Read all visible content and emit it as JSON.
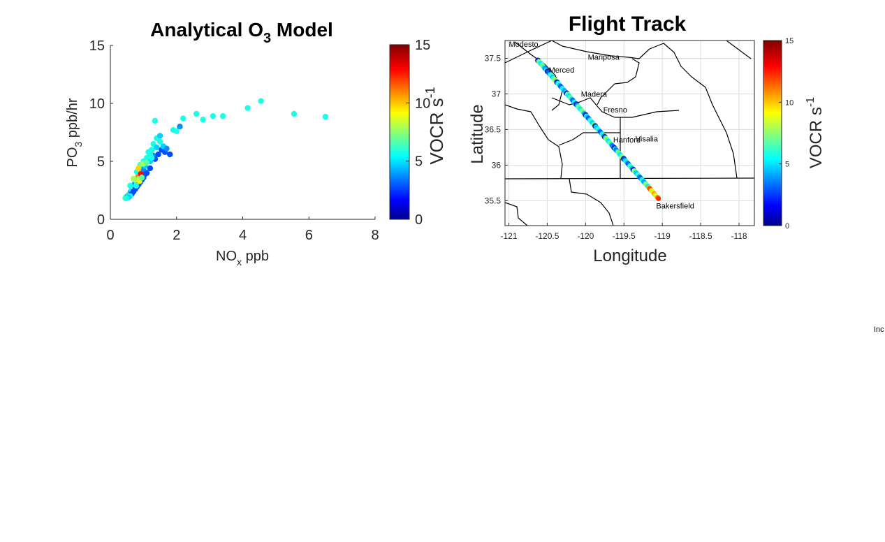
{
  "chart_data": [
    {
      "type": "scatter",
      "title": "Analytical O",
      "title_sub": "3",
      "title_suffix": " Model",
      "xlabel_main": "NO",
      "xlabel_sub": "x",
      "xlabel_suffix": " ppb",
      "ylabel_main": "PO",
      "ylabel_sub": "3",
      "ylabel_suffix": " ppb/hr",
      "xlim": [
        0,
        8
      ],
      "ylim": [
        0,
        15
      ],
      "xticks": [
        "0",
        "2",
        "4",
        "6",
        "8"
      ],
      "yticks": [
        "0",
        "5",
        "10",
        "15"
      ],
      "grid": false,
      "colormap": "jet",
      "colorbar": {
        "label_main": "VOCR s",
        "label_sup": "-1",
        "ticks": [
          "0",
          "5",
          "10",
          "15"
        ],
        "range": [
          0,
          15
        ]
      },
      "points": [
        [
          0.45,
          1.85,
          7
        ],
        [
          0.5,
          1.95,
          6
        ],
        [
          0.52,
          2.0,
          4
        ],
        [
          0.55,
          2.1,
          6
        ],
        [
          0.58,
          2.2,
          5
        ],
        [
          0.6,
          2.3,
          7
        ],
        [
          0.62,
          2.4,
          4
        ],
        [
          0.65,
          2.5,
          6
        ],
        [
          0.68,
          2.6,
          5
        ],
        [
          0.7,
          2.8,
          8
        ],
        [
          0.72,
          3.0,
          6
        ],
        [
          0.75,
          3.1,
          4
        ],
        [
          0.78,
          3.3,
          7
        ],
        [
          0.8,
          3.4,
          9
        ],
        [
          0.82,
          3.6,
          6
        ],
        [
          0.85,
          3.8,
          11
        ],
        [
          0.88,
          3.5,
          8
        ],
        [
          0.9,
          4.0,
          6
        ],
        [
          0.92,
          4.2,
          10
        ],
        [
          0.95,
          4.5,
          12
        ],
        [
          0.6,
          2.9,
          6
        ],
        [
          0.7,
          3.5,
          8
        ],
        [
          0.8,
          4.1,
          6
        ],
        [
          0.9,
          4.7,
          7
        ],
        [
          1.0,
          5.0,
          6
        ],
        [
          1.0,
          4.3,
          4
        ],
        [
          1.05,
          4.6,
          5
        ],
        [
          1.1,
          5.3,
          6
        ],
        [
          1.1,
          4.0,
          3
        ],
        [
          1.15,
          5.8,
          6
        ],
        [
          1.2,
          5.0,
          5
        ],
        [
          1.2,
          4.4,
          3
        ],
        [
          1.25,
          6.0,
          6
        ],
        [
          1.3,
          5.5,
          4
        ],
        [
          1.3,
          6.5,
          6
        ],
        [
          1.35,
          5.2,
          3
        ],
        [
          1.4,
          6.2,
          5
        ],
        [
          1.4,
          7.0,
          6
        ],
        [
          1.45,
          5.6,
          3
        ],
        [
          1.5,
          6.7,
          6
        ],
        [
          1.5,
          7.2,
          5
        ],
        [
          1.55,
          6.0,
          3
        ],
        [
          1.6,
          6.3,
          5
        ],
        [
          1.65,
          5.8,
          3
        ],
        [
          1.7,
          6.1,
          4
        ],
        [
          1.8,
          5.6,
          3
        ],
        [
          0.65,
          2.2,
          3
        ],
        [
          0.7,
          2.4,
          3
        ],
        [
          0.75,
          2.6,
          3
        ],
        [
          0.8,
          2.8,
          3
        ],
        [
          0.85,
          3.0,
          3
        ],
        [
          0.9,
          3.2,
          3
        ],
        [
          0.95,
          3.4,
          3
        ],
        [
          1.0,
          3.6,
          3
        ],
        [
          1.05,
          3.9,
          3
        ],
        [
          1.35,
          8.5,
          6
        ],
        [
          1.9,
          7.7,
          6
        ],
        [
          2.0,
          7.6,
          6
        ],
        [
          2.1,
          8.0,
          4
        ],
        [
          2.2,
          8.7,
          6
        ],
        [
          2.6,
          9.1,
          6
        ],
        [
          2.8,
          8.6,
          6
        ],
        [
          3.1,
          8.9,
          6
        ],
        [
          3.4,
          8.9,
          6
        ],
        [
          4.15,
          9.6,
          6
        ],
        [
          4.55,
          10.2,
          6
        ],
        [
          5.55,
          9.1,
          6
        ],
        [
          6.5,
          8.85,
          6
        ],
        [
          0.88,
          3.3,
          9
        ],
        [
          0.92,
          3.9,
          13
        ],
        [
          0.85,
          4.4,
          10
        ],
        [
          1.0,
          4.8,
          8
        ],
        [
          0.95,
          3.6,
          7
        ],
        [
          0.78,
          2.9,
          6
        ],
        [
          1.25,
          5.3,
          6
        ],
        [
          1.1,
          4.9,
          7
        ],
        [
          1.2,
          5.6,
          6
        ],
        [
          0.6,
          2.0,
          6
        ],
        [
          0.55,
          1.9,
          5
        ],
        [
          0.48,
          1.8,
          6
        ]
      ]
    },
    {
      "type": "scatter",
      "title": "Flight Track",
      "xlabel": "Longitude",
      "ylabel": "Latitude",
      "xlim": [
        -121.05,
        -117.8
      ],
      "ylim": [
        35.15,
        37.75
      ],
      "xticks": [
        "-121",
        "-120.5",
        "-120",
        "-119.5",
        "-119",
        "-118.5",
        "-118"
      ],
      "yticks": [
        "35.5",
        "36",
        "36.5",
        "37",
        "37.5"
      ],
      "grid": true,
      "colormap": "jet",
      "colorbar": {
        "label_main": "VOCR s",
        "label_sup": "-1",
        "ticks": [
          "0",
          "5",
          "10",
          "15"
        ],
        "range": [
          0,
          15
        ]
      },
      "track_start": [
        -120.62,
        37.47
      ],
      "track_end": [
        -119.05,
        35.53
      ],
      "cities": [
        {
          "name": "Modesto",
          "lon": -121.0,
          "lat": 37.66
        },
        {
          "name": "Mariposa",
          "lon": -119.97,
          "lat": 37.48
        },
        {
          "name": "Merced",
          "lon": -120.48,
          "lat": 37.3
        },
        {
          "name": "Madera",
          "lon": -120.06,
          "lat": 36.96
        },
        {
          "name": "Fresno",
          "lon": -119.77,
          "lat": 36.74
        },
        {
          "name": "Hanford",
          "lon": -119.64,
          "lat": 36.32
        },
        {
          "name": "Visalia",
          "lon": -119.35,
          "lat": 36.33
        },
        {
          "name": "Bakersfield",
          "lon": -119.08,
          "lat": 35.39
        }
      ]
    }
  ],
  "stray_label": "Inc"
}
